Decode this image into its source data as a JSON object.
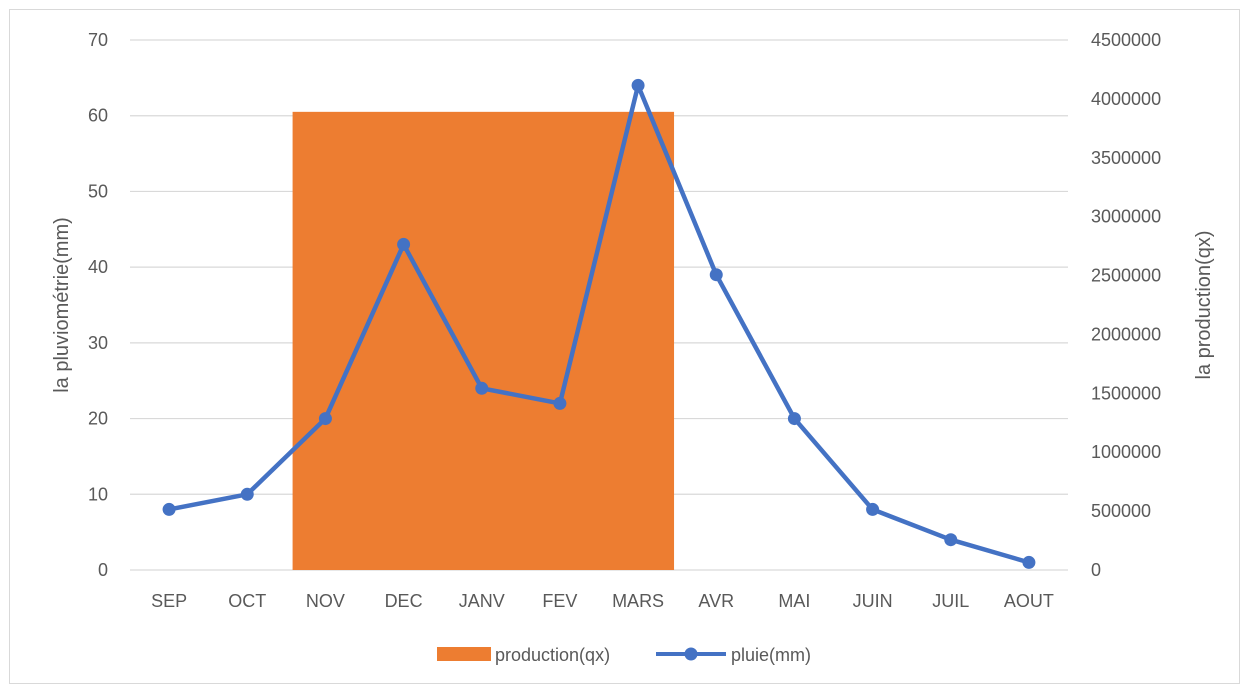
{
  "chart_data": {
    "type": "bar+line",
    "categories": [
      "SEP",
      "OCT",
      "NOV",
      "DEC",
      "JANV",
      "FEV",
      "MARS",
      "AVR",
      "MAI",
      "JUIN",
      "JUIL",
      "AOUT"
    ],
    "series": [
      {
        "name": "production(qx)",
        "type": "bar",
        "axis": "right",
        "color": "#ED7D31",
        "span": [
          "NOV",
          "MARS"
        ],
        "value": 3890000
      },
      {
        "name": "pluie(mm)",
        "type": "line",
        "axis": "left",
        "color": "#4472C4",
        "marker": "circle",
        "values": [
          8,
          10,
          20,
          43,
          24,
          22,
          64,
          39,
          20,
          8,
          4,
          1
        ]
      }
    ],
    "y_left": {
      "label": "la pluviométrie(mm)",
      "min": 0,
      "max": 70,
      "step": 10,
      "ticks": [
        "0",
        "10",
        "20",
        "30",
        "40",
        "50",
        "60",
        "70"
      ]
    },
    "y_right": {
      "label": "la production(qx)",
      "min": 0,
      "max": 4500000,
      "step": 500000,
      "ticks": [
        "0",
        "500000",
        "1000000",
        "1500000",
        "2000000",
        "2500000",
        "3000000",
        "3500000",
        "4000000",
        "4500000"
      ]
    },
    "grid": true,
    "legend": "bottom",
    "gridline_color": "#d9d9d9"
  }
}
